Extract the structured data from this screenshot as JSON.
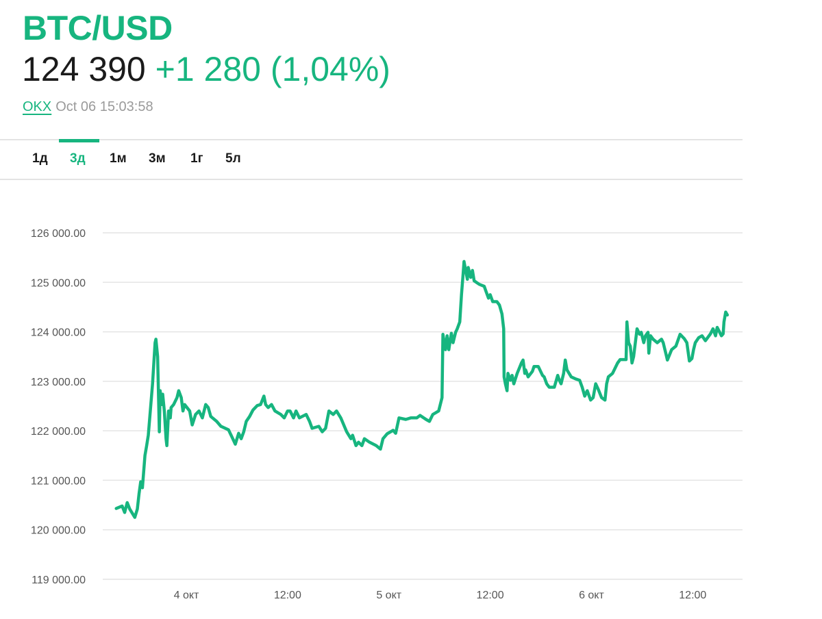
{
  "header": {
    "title": "BTC/USD",
    "price": "124 390",
    "change": "+1 280 (1,04%)",
    "source": "OKX",
    "timestamp": "Oct 06 15:03:58"
  },
  "tabs": [
    {
      "label": "1д",
      "active": false
    },
    {
      "label": "3д",
      "active": true
    },
    {
      "label": "1м",
      "active": false
    },
    {
      "label": "3м",
      "active": false
    },
    {
      "label": "1г",
      "active": false
    },
    {
      "label": "5л",
      "active": false
    }
  ],
  "colors": {
    "accent": "#17b57f",
    "grid": "#e4e4e4",
    "text": "#1b1b1b"
  },
  "chart_data": {
    "type": "line",
    "title": "BTC/USD",
    "xlabel": "",
    "ylabel": "",
    "xunit": "hours since 4 окт 00:00",
    "xlim": [
      -9.9,
      65.9
    ],
    "ylim": [
      119000,
      126000
    ],
    "grid": true,
    "yticks": [
      {
        "value": 126000,
        "label": "126 000.00"
      },
      {
        "value": 125000,
        "label": "125 000.00"
      },
      {
        "value": 124000,
        "label": "124 000.00"
      },
      {
        "value": 123000,
        "label": "123 000.00"
      },
      {
        "value": 122000,
        "label": "122 000.00"
      },
      {
        "value": 121000,
        "label": "121 000.00"
      },
      {
        "value": 120000,
        "label": "120 000.00"
      },
      {
        "value": 119000,
        "label": "119 000.00"
      }
    ],
    "xticks": [
      {
        "value": 0,
        "label": "4 окт"
      },
      {
        "value": 12,
        "label": "12:00"
      },
      {
        "value": 24,
        "label": "5 окт"
      },
      {
        "value": 36,
        "label": "12:00"
      },
      {
        "value": 48,
        "label": "6 окт"
      },
      {
        "value": 60,
        "label": "12:00"
      }
    ],
    "series": [
      {
        "name": "BTC/USD",
        "points": [
          [
            -8.3,
            120430
          ],
          [
            -7.6,
            120480
          ],
          [
            -7.3,
            120350
          ],
          [
            -7.0,
            120550
          ],
          [
            -6.7,
            120420
          ],
          [
            -6.1,
            120250
          ],
          [
            -5.8,
            120420
          ],
          [
            -5.6,
            120730
          ],
          [
            -5.4,
            120970
          ],
          [
            -5.2,
            120850
          ],
          [
            -4.9,
            121500
          ],
          [
            -4.7,
            121700
          ],
          [
            -4.5,
            121910
          ],
          [
            -4.2,
            122530
          ],
          [
            -4.0,
            122950
          ],
          [
            -3.7,
            123780
          ],
          [
            -3.6,
            123850
          ],
          [
            -3.4,
            123500
          ],
          [
            -3.2,
            121980
          ],
          [
            -3.1,
            122810
          ],
          [
            -2.9,
            122530
          ],
          [
            -2.8,
            122740
          ],
          [
            -2.6,
            122400
          ],
          [
            -2.4,
            121840
          ],
          [
            -2.3,
            121700
          ],
          [
            -2.1,
            122400
          ],
          [
            -1.9,
            122260
          ],
          [
            -1.8,
            122470
          ],
          [
            -1.5,
            122530
          ],
          [
            -1.1,
            122670
          ],
          [
            -0.9,
            122810
          ],
          [
            -0.6,
            122670
          ],
          [
            -0.4,
            122400
          ],
          [
            -0.2,
            122530
          ],
          [
            0.4,
            122400
          ],
          [
            0.7,
            122120
          ],
          [
            1.1,
            122330
          ],
          [
            1.5,
            122400
          ],
          [
            1.9,
            122260
          ],
          [
            2.3,
            122530
          ],
          [
            2.6,
            122470
          ],
          [
            2.9,
            122290
          ],
          [
            3.6,
            122190
          ],
          [
            4.1,
            122090
          ],
          [
            5.0,
            122020
          ],
          [
            5.5,
            121840
          ],
          [
            5.8,
            121730
          ],
          [
            6.2,
            121950
          ],
          [
            6.5,
            121840
          ],
          [
            6.8,
            121980
          ],
          [
            7.1,
            122190
          ],
          [
            7.5,
            122290
          ],
          [
            7.9,
            122420
          ],
          [
            8.4,
            122510
          ],
          [
            8.8,
            122530
          ],
          [
            9.2,
            122700
          ],
          [
            9.4,
            122530
          ],
          [
            9.7,
            122470
          ],
          [
            10.1,
            122530
          ],
          [
            10.5,
            122400
          ],
          [
            11.2,
            122330
          ],
          [
            11.6,
            122260
          ],
          [
            12.0,
            122400
          ],
          [
            12.3,
            122400
          ],
          [
            12.7,
            122260
          ],
          [
            13.0,
            122400
          ],
          [
            13.4,
            122260
          ],
          [
            14.2,
            122330
          ],
          [
            14.6,
            122190
          ],
          [
            14.9,
            122050
          ],
          [
            15.7,
            122090
          ],
          [
            16.1,
            121980
          ],
          [
            16.5,
            122050
          ],
          [
            16.9,
            122400
          ],
          [
            17.4,
            122330
          ],
          [
            17.8,
            122400
          ],
          [
            18.3,
            122260
          ],
          [
            19.0,
            121980
          ],
          [
            19.5,
            121840
          ],
          [
            19.7,
            121910
          ],
          [
            20.1,
            121700
          ],
          [
            20.4,
            121770
          ],
          [
            20.8,
            121700
          ],
          [
            21.1,
            121840
          ],
          [
            21.7,
            121770
          ],
          [
            22.5,
            121700
          ],
          [
            23.0,
            121630
          ],
          [
            23.3,
            121840
          ],
          [
            23.8,
            121940
          ],
          [
            24.5,
            122010
          ],
          [
            24.8,
            121950
          ],
          [
            25.2,
            122260
          ],
          [
            26.0,
            122230
          ],
          [
            26.6,
            122260
          ],
          [
            27.3,
            122260
          ],
          [
            27.7,
            122310
          ],
          [
            28.4,
            122230
          ],
          [
            28.8,
            122190
          ],
          [
            29.2,
            122330
          ],
          [
            29.9,
            122400
          ],
          [
            30.3,
            122670
          ],
          [
            30.4,
            123950
          ],
          [
            30.7,
            123640
          ],
          [
            30.9,
            123920
          ],
          [
            31.1,
            123640
          ],
          [
            31.4,
            123970
          ],
          [
            31.6,
            123780
          ],
          [
            31.9,
            123990
          ],
          [
            32.1,
            124060
          ],
          [
            32.4,
            124200
          ],
          [
            32.6,
            124750
          ],
          [
            32.8,
            125170
          ],
          [
            32.9,
            125420
          ],
          [
            33.1,
            125240
          ],
          [
            33.3,
            125060
          ],
          [
            33.4,
            125300
          ],
          [
            33.7,
            125100
          ],
          [
            33.9,
            125240
          ],
          [
            34.1,
            125030
          ],
          [
            34.7,
            124960
          ],
          [
            35.3,
            124920
          ],
          [
            35.5,
            124820
          ],
          [
            35.8,
            124680
          ],
          [
            36.0,
            124750
          ],
          [
            36.3,
            124610
          ],
          [
            36.8,
            124610
          ],
          [
            37.1,
            124540
          ],
          [
            37.4,
            124360
          ],
          [
            37.6,
            124060
          ],
          [
            37.65,
            123090
          ],
          [
            37.8,
            122950
          ],
          [
            38.0,
            122810
          ],
          [
            38.1,
            123160
          ],
          [
            38.4,
            123020
          ],
          [
            38.6,
            123120
          ],
          [
            38.8,
            122950
          ],
          [
            39.2,
            123160
          ],
          [
            39.7,
            123370
          ],
          [
            39.9,
            123430
          ],
          [
            40.1,
            123160
          ],
          [
            40.2,
            123230
          ],
          [
            40.5,
            123090
          ],
          [
            41.0,
            123200
          ],
          [
            41.2,
            123300
          ],
          [
            41.7,
            123300
          ],
          [
            42.2,
            123120
          ],
          [
            42.4,
            123090
          ],
          [
            42.7,
            122950
          ],
          [
            43.0,
            122880
          ],
          [
            43.6,
            122880
          ],
          [
            44.0,
            123120
          ],
          [
            44.2,
            123020
          ],
          [
            44.4,
            122950
          ],
          [
            44.7,
            123160
          ],
          [
            44.9,
            123430
          ],
          [
            45.1,
            123230
          ],
          [
            45.6,
            123090
          ],
          [
            46.1,
            123050
          ],
          [
            46.6,
            123020
          ],
          [
            46.9,
            122880
          ],
          [
            47.2,
            122700
          ],
          [
            47.5,
            122810
          ],
          [
            47.9,
            122620
          ],
          [
            48.2,
            122670
          ],
          [
            48.5,
            122950
          ],
          [
            48.8,
            122840
          ],
          [
            49.2,
            122670
          ],
          [
            49.6,
            122620
          ],
          [
            49.8,
            122950
          ],
          [
            50.0,
            123090
          ],
          [
            50.5,
            123160
          ],
          [
            51.1,
            123370
          ],
          [
            51.4,
            123440
          ],
          [
            52.1,
            123440
          ],
          [
            52.2,
            124200
          ],
          [
            52.4,
            123780
          ],
          [
            52.6,
            123710
          ],
          [
            52.8,
            123370
          ],
          [
            53.0,
            123500
          ],
          [
            53.2,
            123780
          ],
          [
            53.4,
            124060
          ],
          [
            53.7,
            123950
          ],
          [
            53.9,
            123990
          ],
          [
            54.2,
            123780
          ],
          [
            54.4,
            123920
          ],
          [
            54.7,
            123990
          ],
          [
            54.8,
            123570
          ],
          [
            55.0,
            123920
          ],
          [
            55.3,
            123850
          ],
          [
            55.8,
            123780
          ],
          [
            56.3,
            123850
          ],
          [
            56.5,
            123780
          ],
          [
            56.8,
            123570
          ],
          [
            57.0,
            123430
          ],
          [
            57.5,
            123640
          ],
          [
            58.0,
            123710
          ],
          [
            58.5,
            123950
          ],
          [
            59.0,
            123860
          ],
          [
            59.3,
            123780
          ],
          [
            59.6,
            123410
          ],
          [
            59.9,
            123460
          ],
          [
            60.1,
            123640
          ],
          [
            60.3,
            123780
          ],
          [
            60.7,
            123880
          ],
          [
            61.1,
            123920
          ],
          [
            61.5,
            123820
          ],
          [
            62.1,
            123960
          ],
          [
            62.4,
            124060
          ],
          [
            62.7,
            123920
          ],
          [
            62.9,
            124090
          ],
          [
            63.4,
            123920
          ],
          [
            63.6,
            123960
          ],
          [
            63.7,
            124200
          ],
          [
            63.9,
            124400
          ],
          [
            64.1,
            124340
          ]
        ]
      }
    ]
  }
}
